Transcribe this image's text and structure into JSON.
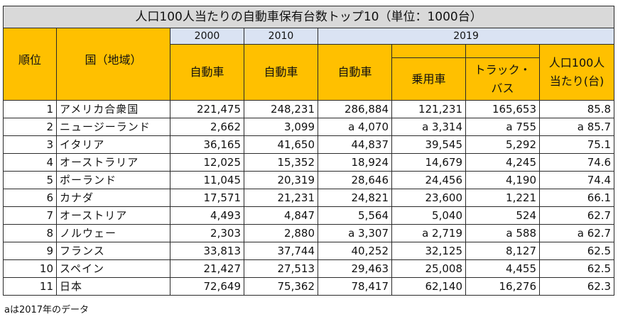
{
  "title": "人口100人当たりの自動車保有台数トップ10（単位：1000台）",
  "years": [
    "2000",
    "2010",
    "2019"
  ],
  "headers": {
    "rank": "順位",
    "country": "国（地域）",
    "auto_2000": "自動車",
    "auto_2010": "自動車",
    "auto_2019": "自動車",
    "passenger": "乗用車",
    "truck_line1": "トラック・",
    "truck_line2": "バス",
    "per100_line1": "人口100人",
    "per100_line2": "当たり(台)"
  },
  "rows": [
    {
      "rank": "1",
      "country": "アメリカ合衆国",
      "auto_2000": "221,475",
      "auto_2010": "248,231",
      "auto_2019": "286,884",
      "passenger": "121,231",
      "truck": "165,653",
      "per100": "85.8"
    },
    {
      "rank": "2",
      "country": "ニュージーランド",
      "auto_2000": "2,662",
      "auto_2010": "3,099",
      "auto_2019": "a 4,070",
      "passenger": "a 3,314",
      "truck": "a 755",
      "per100": "a 85.7"
    },
    {
      "rank": "3",
      "country": "イタリア",
      "auto_2000": "36,165",
      "auto_2010": "41,650",
      "auto_2019": "44,837",
      "passenger": "39,545",
      "truck": "5,292",
      "per100": "75.1"
    },
    {
      "rank": "4",
      "country": "オーストラリア",
      "auto_2000": "12,025",
      "auto_2010": "15,352",
      "auto_2019": "18,924",
      "passenger": "14,679",
      "truck": "4,245",
      "per100": "74.6"
    },
    {
      "rank": "5",
      "country": "ポーランド",
      "auto_2000": "11,045",
      "auto_2010": "20,319",
      "auto_2019": "28,646",
      "passenger": "24,456",
      "truck": "4,190",
      "per100": "74.4"
    },
    {
      "rank": "6",
      "country": "カナダ",
      "auto_2000": "17,571",
      "auto_2010": "21,231",
      "auto_2019": "24,821",
      "passenger": "23,600",
      "truck": "1,221",
      "per100": "66.1"
    },
    {
      "rank": "7",
      "country": "オーストリア",
      "auto_2000": "4,493",
      "auto_2010": "4,847",
      "auto_2019": "5,564",
      "passenger": "5,040",
      "truck": "524",
      "per100": "62.7"
    },
    {
      "rank": "8",
      "country": "ノルウェー",
      "auto_2000": "2,303",
      "auto_2010": "2,880",
      "auto_2019": "a 3,307",
      "passenger": "a 2,719",
      "truck": "a 588",
      "per100": "a 62.7"
    },
    {
      "rank": "9",
      "country": "フランス",
      "auto_2000": "33,813",
      "auto_2010": "37,744",
      "auto_2019": "40,252",
      "passenger": "32,125",
      "truck": "8,127",
      "per100": "62.5"
    },
    {
      "rank": "10",
      "country": "スペイン",
      "auto_2000": "21,427",
      "auto_2010": "27,513",
      "auto_2019": "29,463",
      "passenger": "25,008",
      "truck": "4,455",
      "per100": "62.5"
    },
    {
      "rank": "11",
      "country": "日本",
      "auto_2000": "72,649",
      "auto_2010": "75,362",
      "auto_2019": "78,417",
      "passenger": "62,140",
      "truck": "16,276",
      "per100": "62.3"
    }
  ],
  "footnote": "aは2017年のデータ",
  "colors": {
    "title_bg": "#d9d9d9",
    "year_bg": "#dae3f3",
    "header_bg": "#ffc000",
    "border": "#2a2a2a"
  }
}
